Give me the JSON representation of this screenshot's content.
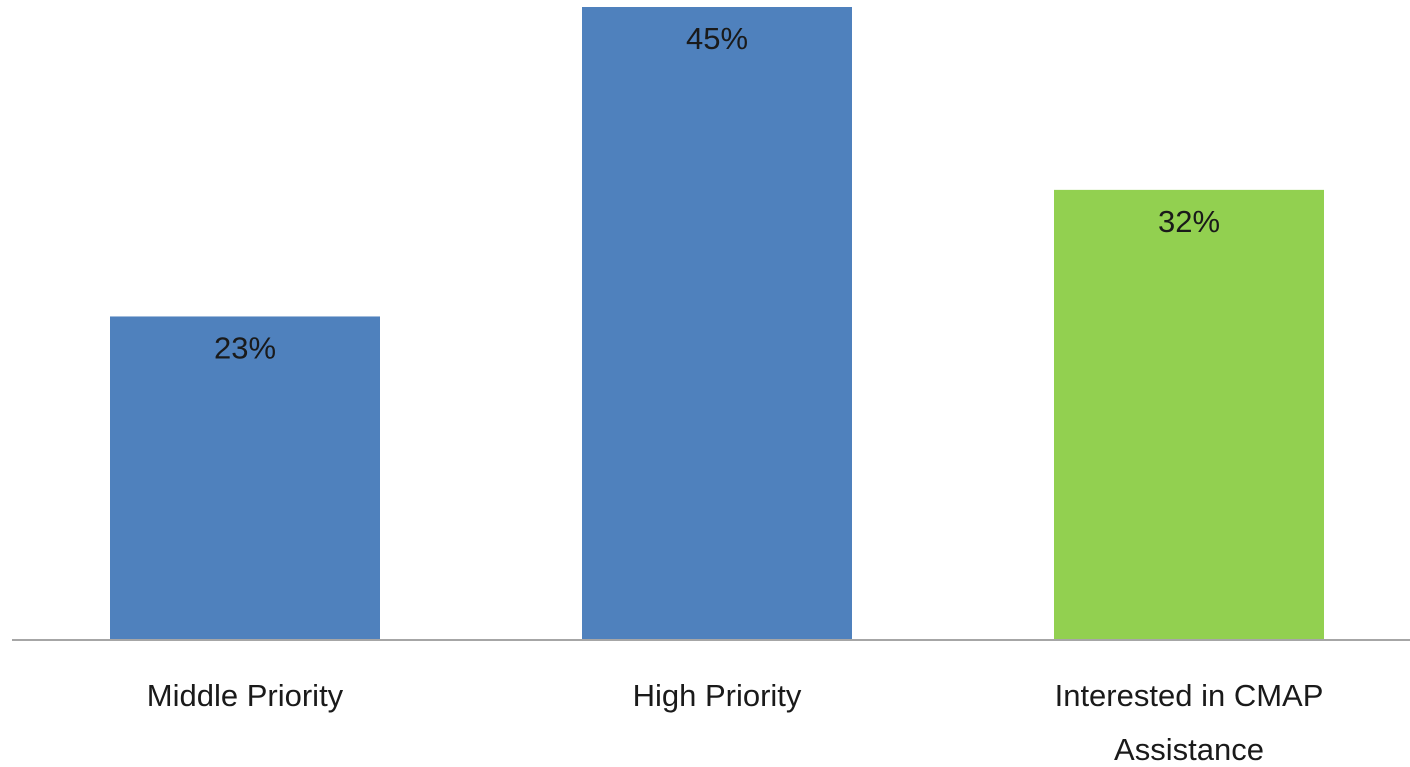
{
  "chart_data": {
    "type": "bar",
    "categories": [
      "Middle Priority",
      "High Priority",
      "Interested in CMAP Assistance"
    ],
    "category_label_lines": [
      [
        "Middle Priority"
      ],
      [
        "High Priority"
      ],
      [
        "Interested in CMAP",
        "Assistance"
      ]
    ],
    "values": [
      23,
      45,
      32
    ],
    "data_labels": [
      "23%",
      "45%",
      "32%"
    ],
    "colors": [
      "#4f81bd",
      "#4f81bd",
      "#92d050"
    ],
    "axis_color": "#a6a6a6",
    "ylim": [
      0,
      45
    ],
    "grid": false,
    "legend": "none"
  }
}
